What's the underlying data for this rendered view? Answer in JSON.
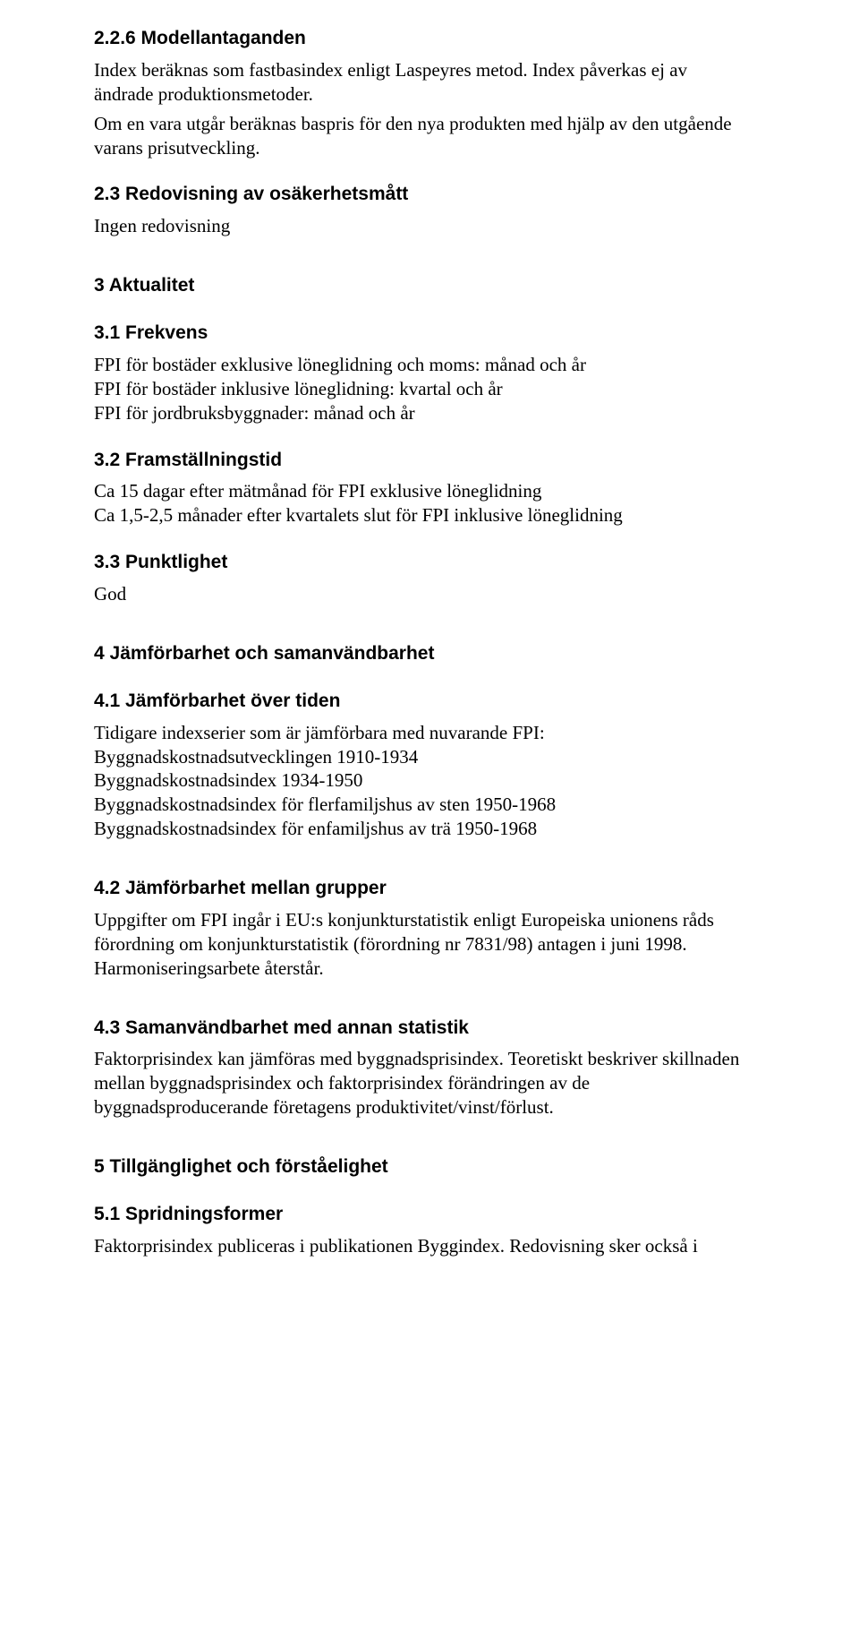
{
  "s226": {
    "heading": "2.2.6 Modellantaganden",
    "p1": "Index beräknas som fastbasindex enligt Laspeyres metod. Index påverkas ej av ändrade produktionsmetoder.",
    "p2": "Om en vara utgår beräknas baspris för den nya produkten med hjälp av den utgående varans prisutveckling."
  },
  "s23": {
    "heading": "2.3 Redovisning av osäkerhetsmått",
    "p1": "Ingen redovisning"
  },
  "s3": {
    "heading": "3 Aktualitet"
  },
  "s31": {
    "heading": "3.1 Frekvens",
    "l1": "FPI för bostäder exklusive löneglidning och moms: månad och år",
    "l2": "FPI för bostäder inklusive löneglidning: kvartal och år",
    "l3": "FPI för jordbruksbyggnader: månad och år"
  },
  "s32": {
    "heading": "3.2 Framställningstid",
    "l1": "Ca 15 dagar efter mätmånad för FPI exklusive löneglidning",
    "l2": "Ca 1,5-2,5 månader efter kvartalets slut för FPI inklusive löneglidning"
  },
  "s33": {
    "heading": "3.3 Punktlighet",
    "p1": "God"
  },
  "s4": {
    "heading": "4 Jämförbarhet och samanvändbarhet"
  },
  "s41": {
    "heading": "4.1 Jämförbarhet över tiden",
    "l1": "Tidigare indexserier som är jämförbara med nuvarande FPI:",
    "l2": "Byggnadskostnadsutvecklingen 1910-1934",
    "l3": "Byggnadskostnadsindex 1934-1950",
    "l4": "Byggnadskostnadsindex för flerfamiljshus av sten 1950-1968",
    "l5": "Byggnadskostnadsindex för enfamiljshus av trä 1950-1968"
  },
  "s42": {
    "heading": "4.2 Jämförbarhet mellan grupper",
    "p1": "Uppgifter om FPI ingår i EU:s konjunkturstatistik enligt Europeiska unionens råds förordning om konjunkturstatistik (förordning nr 7831/98) antagen i juni 1998. Harmoniseringsarbete återstår."
  },
  "s43": {
    "heading": "4.3 Samanvändbarhet med annan statistik",
    "p1": "Faktorprisindex kan jämföras med byggnadsprisindex. Teoretiskt beskriver skillnaden mellan byggnadsprisindex och faktorprisindex förändringen av de byggnadsproducerande företagens produktivitet/vinst/förlust."
  },
  "s5": {
    "heading": "5 Tillgänglighet och förståelighet"
  },
  "s51": {
    "heading": "5.1 Spridningsformer",
    "p1": "Faktorprisindex publiceras i publikationen Byggindex. Redovisning sker också i"
  }
}
